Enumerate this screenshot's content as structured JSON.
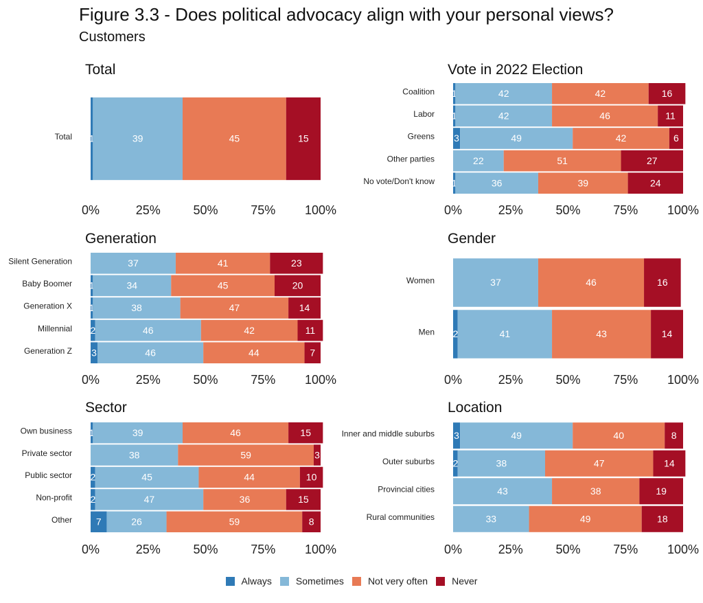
{
  "title": "Figure 3.3 - Does political advocacy align with your personal views?",
  "subtitle": "Customers",
  "legend": [
    "Always",
    "Sometimes",
    "Not very often",
    "Never"
  ],
  "colors": {
    "Always": "#2f7ab6",
    "Sometimes": "#85b8d8",
    "Not very often": "#e87a55",
    "Never": "#a50f25"
  },
  "chart_data": [
    {
      "type": "bar",
      "orientation": "horizontal",
      "stacked": "percent",
      "title": "Total",
      "categories": [
        "Total"
      ],
      "series": [
        {
          "name": "Always",
          "values": [
            1
          ]
        },
        {
          "name": "Sometimes",
          "values": [
            39
          ]
        },
        {
          "name": "Not very often",
          "values": [
            45
          ]
        },
        {
          "name": "Never",
          "values": [
            15
          ]
        }
      ],
      "xticks": [
        "0%",
        "25%",
        "50%",
        "75%",
        "100%"
      ]
    },
    {
      "type": "bar",
      "orientation": "horizontal",
      "stacked": "percent",
      "title": "Vote in 2022 Election",
      "categories": [
        "Coalition",
        "Labor",
        "Greens",
        "Other parties",
        "No vote/Don't know"
      ],
      "series": [
        {
          "name": "Always",
          "values": [
            1,
            1,
            3,
            null,
            1
          ]
        },
        {
          "name": "Sometimes",
          "values": [
            42,
            42,
            49,
            22,
            36
          ]
        },
        {
          "name": "Not very often",
          "values": [
            42,
            46,
            42,
            51,
            39
          ]
        },
        {
          "name": "Never",
          "values": [
            16,
            11,
            6,
            27,
            24
          ]
        }
      ],
      "xticks": [
        "0%",
        "25%",
        "50%",
        "75%",
        "100%"
      ]
    },
    {
      "type": "bar",
      "orientation": "horizontal",
      "stacked": "percent",
      "title": "Generation",
      "categories": [
        "Silent Generation",
        "Baby Boomer",
        "Generation X",
        "Millennial",
        "Generation Z"
      ],
      "series": [
        {
          "name": "Always",
          "values": [
            null,
            1,
            1,
            2,
            3
          ]
        },
        {
          "name": "Sometimes",
          "values": [
            37,
            34,
            38,
            46,
            46
          ]
        },
        {
          "name": "Not very often",
          "values": [
            41,
            45,
            47,
            42,
            44
          ]
        },
        {
          "name": "Never",
          "values": [
            23,
            20,
            14,
            11,
            7
          ]
        }
      ],
      "xticks": [
        "0%",
        "25%",
        "50%",
        "75%",
        "100%"
      ]
    },
    {
      "type": "bar",
      "orientation": "horizontal",
      "stacked": "percent",
      "title": "Gender",
      "categories": [
        "Women",
        "Men"
      ],
      "series": [
        {
          "name": "Always",
          "values": [
            0,
            2
          ]
        },
        {
          "name": "Sometimes",
          "values": [
            37,
            41
          ]
        },
        {
          "name": "Not very often",
          "values": [
            46,
            43
          ]
        },
        {
          "name": "Never",
          "values": [
            16,
            14
          ]
        }
      ],
      "xticks": [
        "0%",
        "25%",
        "50%",
        "75%",
        "100%"
      ]
    },
    {
      "type": "bar",
      "orientation": "horizontal",
      "stacked": "percent",
      "title": "Sector",
      "categories": [
        "Own business",
        "Private sector",
        "Public sector",
        "Non-profit",
        "Other"
      ],
      "series": [
        {
          "name": "Always",
          "values": [
            1,
            null,
            2,
            2,
            7
          ]
        },
        {
          "name": "Sometimes",
          "values": [
            39,
            38,
            45,
            47,
            26
          ]
        },
        {
          "name": "Not very often",
          "values": [
            46,
            59,
            44,
            36,
            59
          ]
        },
        {
          "name": "Never",
          "values": [
            15,
            3,
            10,
            15,
            8
          ]
        }
      ],
      "xticks": [
        "0%",
        "25%",
        "50%",
        "75%",
        "100%"
      ]
    },
    {
      "type": "bar",
      "orientation": "horizontal",
      "stacked": "percent",
      "title": "Location",
      "categories": [
        "Inner and middle suburbs",
        "Outer suburbs",
        "Provincial cities",
        "Rural communities"
      ],
      "series": [
        {
          "name": "Always",
          "values": [
            3,
            2,
            null,
            null
          ]
        },
        {
          "name": "Sometimes",
          "values": [
            49,
            38,
            43,
            33
          ]
        },
        {
          "name": "Not very often",
          "values": [
            40,
            47,
            38,
            49
          ]
        },
        {
          "name": "Never",
          "values": [
            8,
            14,
            19,
            18
          ]
        }
      ],
      "xticks": [
        "0%",
        "25%",
        "50%",
        "75%",
        "100%"
      ]
    }
  ]
}
